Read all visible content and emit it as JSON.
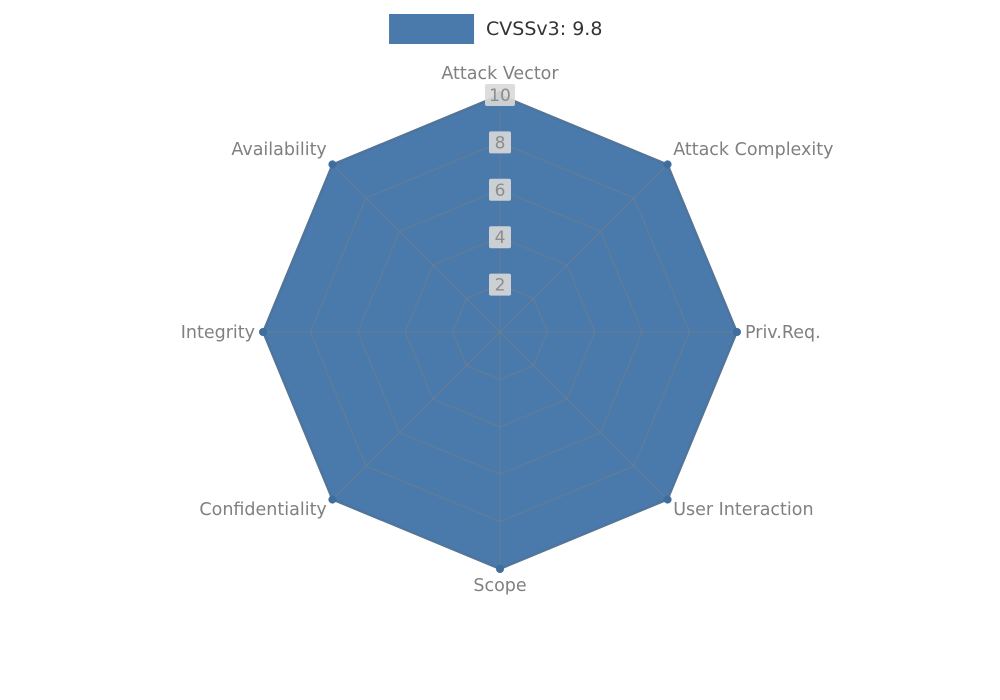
{
  "chart_data": {
    "type": "radar",
    "title": "",
    "legend_label": "CVSSv3: 9.8",
    "legend_position": "top-center",
    "categories": [
      "Attack Vector",
      "Attack Complexity",
      "Priv.Req.",
      "User Interaction",
      "Scope",
      "Confidentiality",
      "Integrity",
      "Availability"
    ],
    "series": [
      {
        "name": "CVSSv3: 9.8",
        "values": [
          10,
          10,
          10,
          10,
          10,
          10,
          10,
          10
        ]
      }
    ],
    "r_ticks": [
      2,
      4,
      6,
      8,
      10
    ],
    "r_max": 10,
    "grid": true,
    "colors": {
      "fill": "#4a79ab",
      "stroke": "#3e6e9e",
      "grid": "#7f7f7f",
      "axis_label": "#808080",
      "tick_label": "#8c8c8c",
      "tick_box": "#d9d9d9",
      "legend_text": "#333333",
      "background": "#ffffff"
    }
  }
}
